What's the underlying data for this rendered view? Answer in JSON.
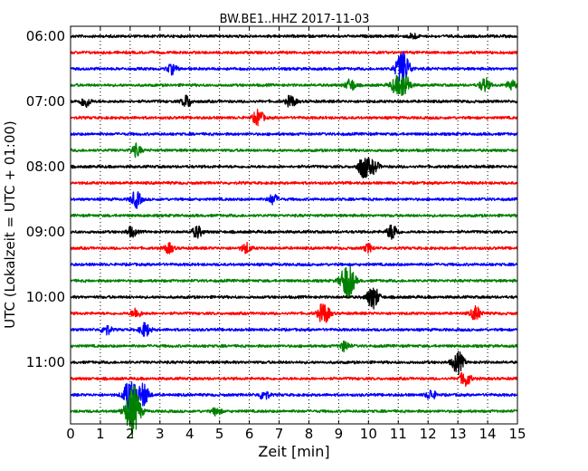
{
  "chart_data": {
    "type": "line",
    "title": "BW.BE1..HHZ 2017-11-03",
    "xlabel": "Zeit  [min]",
    "ylabel": "UTC (Lokalzeit = UTC + 01:00)",
    "xlim": [
      0,
      15
    ],
    "x_ticks": [
      "0",
      "1",
      "2",
      "3",
      "4",
      "5",
      "6",
      "7",
      "8",
      "9",
      "10",
      "11",
      "12",
      "13",
      "14",
      "15"
    ],
    "y_tick_labels": [
      {
        "row": 0,
        "label": "06:00"
      },
      {
        "row": 4,
        "label": "07:00"
      },
      {
        "row": 8,
        "label": "08:00"
      },
      {
        "row": 12,
        "label": "09:00"
      },
      {
        "row": 16,
        "label": "10:00"
      },
      {
        "row": 20,
        "label": "11:00"
      }
    ],
    "grid": true,
    "row_colors": [
      "#000000",
      "#ff0000",
      "#0000ff",
      "#008000"
    ],
    "rows": [
      {
        "start": "06:00",
        "events": [
          [
            11.5,
            0.15
          ]
        ]
      },
      {
        "start": "06:15",
        "events": []
      },
      {
        "start": "06:30",
        "events": [
          [
            3.4,
            0.25
          ],
          [
            11.15,
            0.9
          ]
        ]
      },
      {
        "start": "06:45",
        "events": [
          [
            9.4,
            0.3
          ],
          [
            10.9,
            0.35
          ],
          [
            11.2,
            0.6
          ],
          [
            13.9,
            0.35
          ],
          [
            14.8,
            0.25
          ]
        ]
      },
      {
        "start": "07:00",
        "events": [
          [
            0.5,
            0.3
          ],
          [
            3.9,
            0.3
          ],
          [
            7.4,
            0.3
          ]
        ]
      },
      {
        "start": "07:15",
        "events": [
          [
            6.3,
            0.4
          ]
        ]
      },
      {
        "start": "07:30",
        "events": []
      },
      {
        "start": "07:45",
        "events": [
          [
            2.2,
            0.3
          ]
        ]
      },
      {
        "start": "08:00",
        "events": [
          [
            9.85,
            0.6
          ],
          [
            10.2,
            0.3
          ]
        ]
      },
      {
        "start": "08:15",
        "events": []
      },
      {
        "start": "08:30",
        "events": [
          [
            2.2,
            0.4
          ],
          [
            6.8,
            0.25
          ]
        ]
      },
      {
        "start": "08:45",
        "events": []
      },
      {
        "start": "09:00",
        "events": [
          [
            2.05,
            0.25
          ],
          [
            4.25,
            0.3
          ],
          [
            10.8,
            0.4
          ]
        ]
      },
      {
        "start": "09:15",
        "events": [
          [
            3.3,
            0.25
          ],
          [
            5.9,
            0.25
          ],
          [
            10.0,
            0.2
          ]
        ]
      },
      {
        "start": "09:30",
        "events": []
      },
      {
        "start": "09:45",
        "events": [
          [
            9.3,
            0.9
          ]
        ]
      },
      {
        "start": "10:00",
        "events": [
          [
            10.15,
            0.6
          ]
        ]
      },
      {
        "start": "10:15",
        "events": [
          [
            2.2,
            0.25
          ],
          [
            8.5,
            0.55
          ],
          [
            13.6,
            0.35
          ]
        ]
      },
      {
        "start": "10:30",
        "events": [
          [
            1.2,
            0.25
          ],
          [
            2.5,
            0.35
          ]
        ]
      },
      {
        "start": "10:45",
        "events": [
          [
            9.2,
            0.25
          ]
        ]
      },
      {
        "start": "11:00",
        "events": [
          [
            13.0,
            0.55
          ]
        ]
      },
      {
        "start": "11:15",
        "events": [
          [
            13.25,
            0.4
          ]
        ]
      },
      {
        "start": "11:30",
        "events": [
          [
            2.0,
            0.8
          ],
          [
            2.45,
            0.55
          ],
          [
            6.5,
            0.25
          ],
          [
            12.1,
            0.25
          ]
        ]
      },
      {
        "start": "11:45",
        "events": [
          [
            2.05,
            1.0
          ],
          [
            2.2,
            0.45
          ],
          [
            4.9,
            0.2
          ]
        ]
      }
    ]
  }
}
